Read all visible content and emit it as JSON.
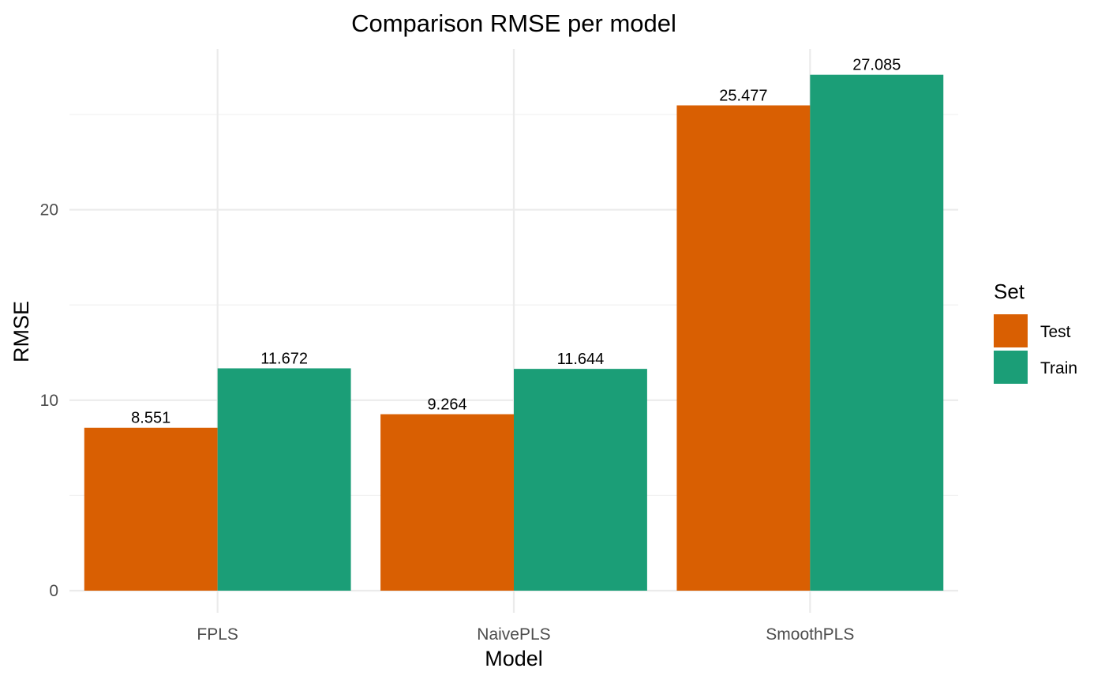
{
  "chart_data": {
    "type": "bar",
    "title": "Comparison RMSE per model",
    "xlabel": "Model",
    "ylabel": "RMSE",
    "categories": [
      "FPLS",
      "NaivePLS",
      "SmoothPLS"
    ],
    "series": [
      {
        "name": "Test",
        "values": [
          8.551,
          9.264,
          25.477
        ],
        "labels": [
          "8.551",
          "9.264",
          "25.477"
        ],
        "color": "#D95F02"
      },
      {
        "name": "Train",
        "values": [
          11.672,
          11.644,
          27.085
        ],
        "labels": [
          "11.672",
          "11.644",
          "27.085"
        ],
        "color": "#1B9E77"
      }
    ],
    "ylim": [
      0,
      28.44
    ],
    "yticks": [
      0,
      10,
      20
    ],
    "ytick_labels": [
      "0",
      "10",
      "20"
    ],
    "grid": true,
    "legend": {
      "title": "Set",
      "placement": "right"
    }
  }
}
